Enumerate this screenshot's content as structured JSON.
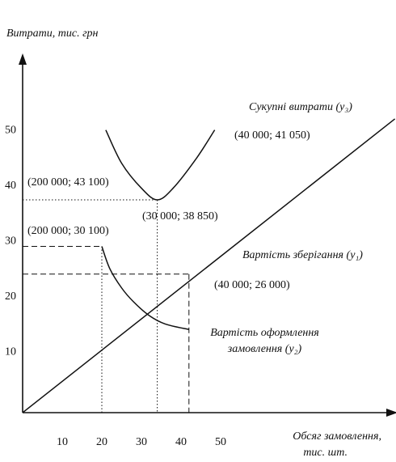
{
  "chart_data": {
    "type": "line",
    "y_label": "Витрати, тис. грн",
    "x_label": [
      "Обсяг замовлення,",
      "тис. шт."
    ],
    "xlim": [
      0,
      94
    ],
    "ylim": [
      0,
      64
    ],
    "xticks": [
      10,
      20,
      30,
      40,
      50
    ],
    "yticks": [
      10,
      20,
      30,
      40,
      50
    ],
    "color": "#111111",
    "series": [
      {
        "name": "Сукупні витрати (y₃)",
        "x": [
          21,
          25,
          30,
          34,
          38,
          44,
          48.5
        ],
        "values": [
          51,
          45,
          40.5,
          38.4,
          40.5,
          46,
          51
        ]
      },
      {
        "name": "Вартість зберігання (y₁)",
        "x": [
          0,
          94
        ],
        "values": [
          0,
          53
        ]
      },
      {
        "name": "Вартість оформлення замовлення (y₂)",
        "x": [
          20,
          22,
          25,
          28,
          32,
          36,
          42
        ],
        "values": [
          30,
          26,
          22.5,
          20,
          17.5,
          16,
          15
        ]
      }
    ],
    "reference_lines": [
      {
        "style": "dotted",
        "x": [
          0,
          34
        ],
        "values": [
          38.4,
          38.4
        ]
      },
      {
        "style": "dotted",
        "x": [
          34,
          34
        ],
        "values": [
          38.4,
          0
        ]
      },
      {
        "style": "dotted",
        "x": [
          20,
          20
        ],
        "values": [
          30,
          0
        ]
      },
      {
        "style": "dashed",
        "x": [
          0,
          20
        ],
        "values": [
          30,
          30
        ]
      },
      {
        "style": "dashed",
        "x": [
          0,
          42
        ],
        "values": [
          25,
          25
        ]
      },
      {
        "style": "dashed",
        "x": [
          42,
          42
        ],
        "values": [
          25,
          0
        ]
      }
    ],
    "annotations": [
      "(40 000; 41 050)",
      "(200 000; 43 100)",
      "(30 000; 38 850)",
      "(200 000; 30 100)",
      "(40 000; 26 000)"
    ]
  }
}
